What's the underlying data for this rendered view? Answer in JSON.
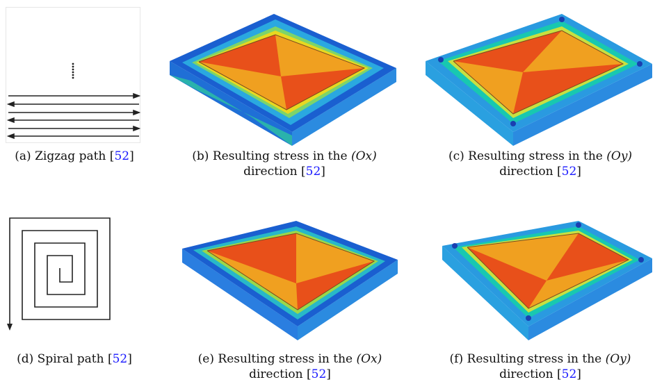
{
  "figure": {
    "panels": [
      {
        "id": "a",
        "label": "(a)",
        "text": "Zigzag path",
        "ref": "52"
      },
      {
        "id": "b",
        "label": "(b)",
        "text": "Resulting stress in the",
        "axis": "(Ox)",
        "text2": "direction",
        "ref": "52"
      },
      {
        "id": "c",
        "label": "(c)",
        "text": "Resulting stress in the",
        "axis": "(Oy)",
        "text2": "direction",
        "ref": "52"
      },
      {
        "id": "d",
        "label": "(d)",
        "text": "Spiral path",
        "ref": "52"
      },
      {
        "id": "e",
        "label": "(e)",
        "text": "Resulting stress in the",
        "axis": "(Ox)",
        "text2": "direction",
        "ref": "52"
      },
      {
        "id": "f",
        "label": "(f)",
        "text": "Resulting stress in the",
        "axis": "(Oy)",
        "text2": "direction",
        "ref": "52"
      }
    ],
    "colors": {
      "link": "#1a1aff",
      "stress_high": "#e8501a",
      "stress_mid_high": "#f0a020",
      "stress_mid": "#e6e020",
      "stress_low": "#18c8b0",
      "stress_lowest": "#1a5fd0",
      "base": "#2a9ae0"
    }
  }
}
